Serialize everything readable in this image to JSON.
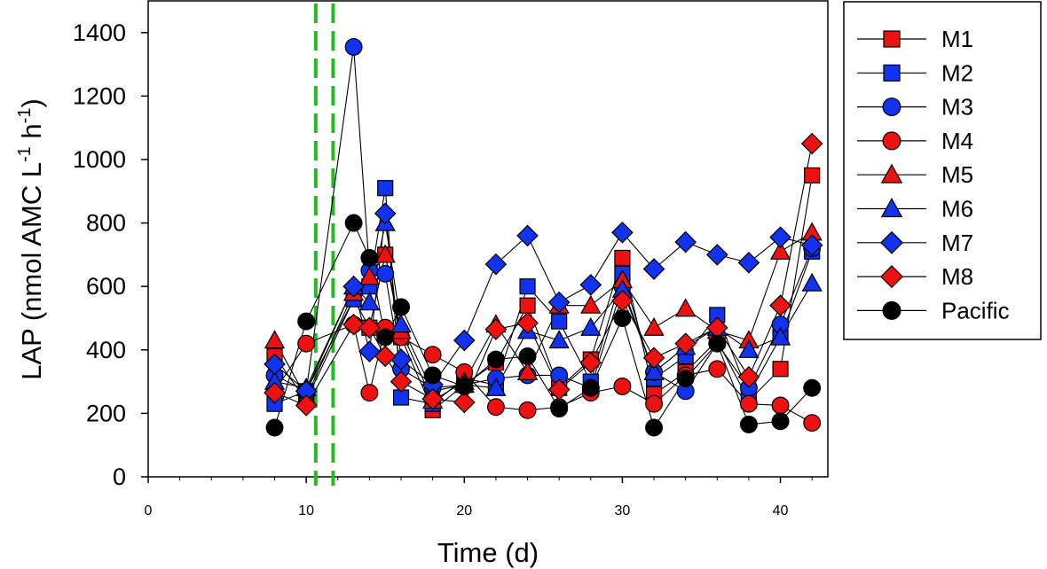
{
  "chart_data": {
    "type": "scatter",
    "title": "",
    "xlabel": "Time (d)",
    "ylabel": {
      "prefix": "LAP (nmol AMC L",
      "sup1": "-1",
      "mid": " h",
      "sup2": "-1",
      "suffix": ")"
    },
    "xlim": [
      0,
      43
    ],
    "ylim": [
      0,
      1500
    ],
    "xticks": [
      0,
      10,
      20,
      30,
      40
    ],
    "yticks": [
      0,
      200,
      400,
      600,
      800,
      1000,
      1200,
      1400
    ],
    "markers_connected": true,
    "vertical_lines": [
      {
        "x": 10.6,
        "color": "#22bb22",
        "style": "dashed"
      },
      {
        "x": 11.7,
        "color": "#22bb22",
        "style": "dashed"
      }
    ],
    "legend_position": "outside-right",
    "series": [
      {
        "name": "M1",
        "marker": "square",
        "color": "#ee1111",
        "x": [
          8,
          10,
          13,
          14,
          15,
          16,
          18,
          20,
          22,
          24,
          26,
          28,
          30,
          32,
          34,
          36,
          38,
          40,
          42
        ],
        "y": [
          380,
          240,
          560,
          470,
          700,
          440,
          210,
          290,
          360,
          540,
          280,
          370,
          690,
          260,
          330,
          430,
          240,
          340,
          950
        ]
      },
      {
        "name": "M2",
        "marker": "square",
        "color": "#1133ee",
        "x": [
          8,
          10,
          13,
          14,
          15,
          16,
          18,
          20,
          22,
          24,
          26,
          28,
          30,
          32,
          34,
          36,
          38,
          40,
          42
        ],
        "y": [
          230,
          270,
          560,
          600,
          910,
          250,
          230,
          310,
          290,
          600,
          490,
          300,
          640,
          310,
          380,
          510,
          260,
          440,
          710
        ]
      },
      {
        "name": "M3",
        "marker": "circle",
        "color": "#1133ee",
        "x": [
          8,
          10,
          13,
          14,
          15,
          16,
          18,
          20,
          22,
          24,
          26,
          28,
          30,
          32,
          34,
          36,
          38,
          40,
          42
        ],
        "y": [
          320,
          270,
          1355,
          650,
          640,
          340,
          280,
          290,
          310,
          320,
          320,
          280,
          600,
          330,
          270,
          420,
          280,
          480,
          720
        ]
      },
      {
        "name": "M4",
        "marker": "circle",
        "color": "#ee1111",
        "x": [
          8,
          10,
          13,
          14,
          15,
          16,
          18,
          20,
          22,
          24,
          26,
          28,
          30,
          32,
          34,
          36,
          38,
          40,
          42
        ],
        "y": [
          270,
          420,
          480,
          265,
          470,
          440,
          385,
          330,
          220,
          210,
          220,
          265,
          285,
          230,
          320,
          340,
          230,
          225,
          170
        ]
      },
      {
        "name": "M5",
        "marker": "triangle",
        "color": "#ee1111",
        "x": [
          8,
          10,
          13,
          14,
          15,
          16,
          18,
          20,
          22,
          24,
          26,
          28,
          30,
          32,
          34,
          36,
          38,
          40,
          42
        ],
        "y": [
          430,
          250,
          580,
          630,
          700,
          460,
          240,
          300,
          480,
          330,
          540,
          540,
          620,
          470,
          530,
          460,
          430,
          710,
          770
        ]
      },
      {
        "name": "M6",
        "marker": "triangle",
        "color": "#1133ee",
        "x": [
          8,
          10,
          13,
          14,
          15,
          16,
          18,
          20,
          22,
          24,
          26,
          28,
          30,
          32,
          34,
          36,
          38,
          40,
          42
        ],
        "y": [
          300,
          280,
          600,
          550,
          800,
          480,
          270,
          290,
          280,
          460,
          430,
          470,
          590,
          330,
          410,
          470,
          400,
          440,
          610
        ]
      },
      {
        "name": "M7",
        "marker": "diamond",
        "color": "#1133ee",
        "x": [
          8,
          10,
          13,
          14,
          15,
          16,
          18,
          20,
          22,
          24,
          26,
          28,
          30,
          32,
          34,
          36,
          38,
          40,
          42
        ],
        "y": [
          355,
          270,
          600,
          395,
          830,
          370,
          290,
          430,
          670,
          760,
          550,
          605,
          770,
          655,
          740,
          700,
          675,
          755,
          730
        ]
      },
      {
        "name": "M8",
        "marker": "diamond",
        "color": "#ee1111",
        "x": [
          8,
          10,
          13,
          14,
          15,
          16,
          18,
          20,
          22,
          24,
          26,
          28,
          30,
          32,
          34,
          36,
          38,
          40,
          42
        ],
        "y": [
          265,
          225,
          480,
          470,
          380,
          300,
          245,
          235,
          465,
          485,
          275,
          360,
          555,
          375,
          420,
          470,
          315,
          540,
          1050
        ]
      },
      {
        "name": "Pacific",
        "marker": "circle",
        "color": "#000000",
        "x": [
          8,
          10,
          13,
          14,
          15,
          16,
          18,
          20,
          22,
          24,
          26,
          28,
          30,
          32,
          34,
          36,
          38,
          40,
          42
        ],
        "y": [
          155,
          490,
          800,
          690,
          440,
          535,
          320,
          285,
          370,
          380,
          215,
          280,
          500,
          155,
          310,
          420,
          165,
          175,
          280
        ]
      }
    ]
  }
}
